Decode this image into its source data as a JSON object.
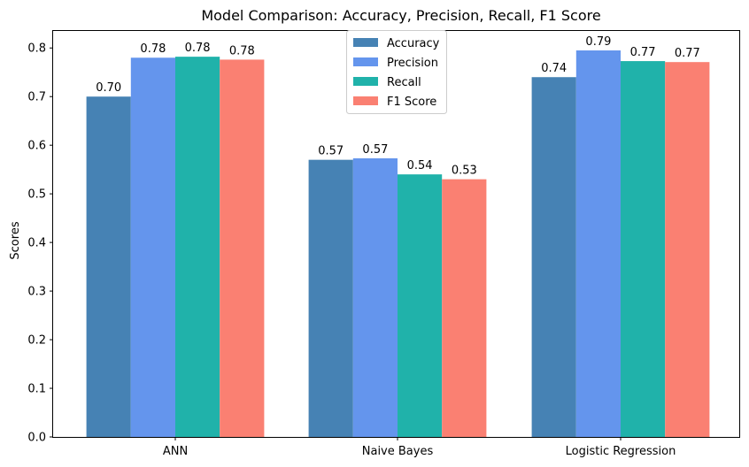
{
  "chart_data": {
    "type": "bar",
    "title": "Model Comparison: Accuracy, Precision, Recall, F1 Score",
    "xlabel": "",
    "ylabel": "Scores",
    "categories": [
      "ANN",
      "Naive Bayes",
      "Logistic Regression"
    ],
    "series": [
      {
        "name": "Accuracy",
        "color": "#4682B4",
        "values": [
          0.7,
          0.57,
          0.74
        ],
        "labels": [
          "0.70",
          "0.57",
          "0.74"
        ]
      },
      {
        "name": "Precision",
        "color": "#6495ED",
        "values": [
          0.78,
          0.573,
          0.795
        ],
        "labels": [
          "0.78",
          "0.57",
          "0.79"
        ]
      },
      {
        "name": "Recall",
        "color": "#20B2AA",
        "values": [
          0.782,
          0.54,
          0.773
        ],
        "labels": [
          "0.78",
          "0.54",
          "0.77"
        ]
      },
      {
        "name": "F1 Score",
        "color": "#FA8072",
        "values": [
          0.776,
          0.53,
          0.771
        ],
        "labels": [
          "0.78",
          "0.53",
          "0.77"
        ]
      }
    ],
    "ylim": [
      0,
      0.835
    ],
    "yticks": [
      "0.0",
      "0.1",
      "0.2",
      "0.3",
      "0.4",
      "0.5",
      "0.6",
      "0.7",
      "0.8"
    ],
    "grid": false,
    "legend_position": "top-center"
  }
}
